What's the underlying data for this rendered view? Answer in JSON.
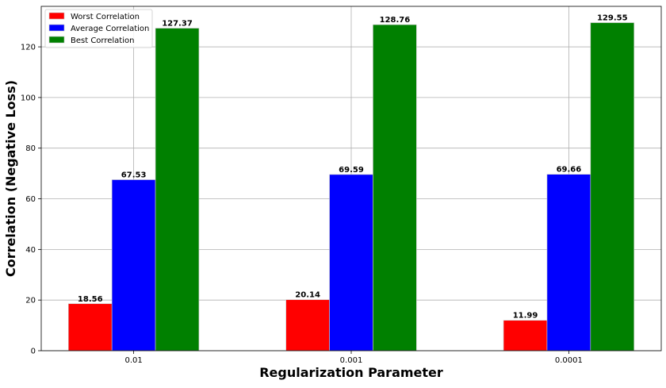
{
  "chart_data": {
    "type": "bar",
    "title": "",
    "xlabel": "Regularization Parameter",
    "ylabel": "Correlation (Negative Loss)",
    "categories": [
      "0.01",
      "0.001",
      "0.0001"
    ],
    "series": [
      {
        "name": "Worst Correlation",
        "color": "#ff0000",
        "values": [
          18.56,
          20.14,
          11.99
        ],
        "labels": [
          "18.56",
          "20.14",
          "11.99"
        ]
      },
      {
        "name": "Average Correlation",
        "color": "#0000ff",
        "values": [
          67.53,
          69.59,
          69.66
        ],
        "labels": [
          "67.53",
          "69.59",
          "69.66"
        ]
      },
      {
        "name": "Best Correlation",
        "color": "#008000",
        "values": [
          127.37,
          128.76,
          129.55
        ],
        "labels": [
          "127.37",
          "128.76",
          "129.55"
        ]
      }
    ],
    "ylim": [
      0,
      136
    ],
    "yticks": [
      0,
      20,
      40,
      60,
      80,
      100,
      120
    ],
    "ytick_labels": [
      "0",
      "20",
      "40",
      "60",
      "80",
      "100",
      "120"
    ],
    "grid": true,
    "legend_position": "top-left"
  }
}
